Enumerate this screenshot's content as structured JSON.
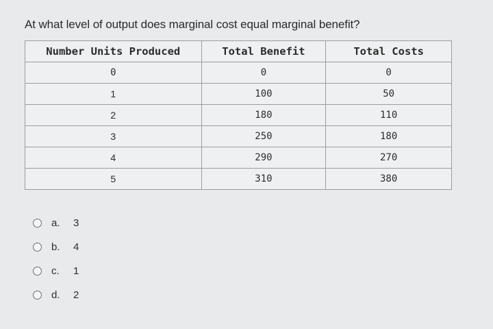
{
  "question": "At what level of output does marginal cost equal marginal benefit?",
  "table": {
    "headers": [
      "Number Units Produced",
      "Total Benefit",
      "Total Costs"
    ],
    "rows": [
      [
        "0",
        "0",
        "0"
      ],
      [
        "1",
        "100",
        "50"
      ],
      [
        "2",
        "180",
        "110"
      ],
      [
        "3",
        "250",
        "180"
      ],
      [
        "4",
        "290",
        "270"
      ],
      [
        "5",
        "310",
        "380"
      ]
    ]
  },
  "options": [
    {
      "letter": "a.",
      "value": "3"
    },
    {
      "letter": "b.",
      "value": "4"
    },
    {
      "letter": "c.",
      "value": "1"
    },
    {
      "letter": "d.",
      "value": "2"
    }
  ]
}
